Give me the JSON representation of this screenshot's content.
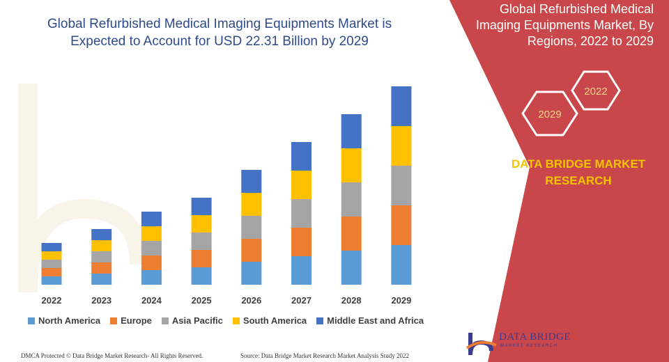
{
  "header": {
    "title_line1": "Global Refurbished Medical Imaging Equipments Market is",
    "title_line2": "Expected to Account for USD 22.31 Billion by 2029"
  },
  "side_panel": {
    "title_line1": "Global Refurbished Medical",
    "title_line2": "Imaging Equipments Market, By",
    "title_line3": "Regions, 2022 to 2029",
    "hex_top": "2022",
    "hex_bottom": "2029",
    "brand_line1": "DATA BRIDGE MARKET",
    "brand_line2": "RESEARCH"
  },
  "footer": {
    "left": "DMCA Protected © Data Bridge Market Research- All Rights Reserved.",
    "right": "Source: Data Bridge Market Research Market Analysis Study 2022"
  },
  "logo": {
    "name": "DATA BRIDGE",
    "sub": "MARKET RESEARCH"
  },
  "colors": {
    "panel": "#c9474a",
    "north_america": "#5b9bd5",
    "europe": "#ed7d31",
    "asia_pacific": "#a5a5a5",
    "south_america": "#ffc000",
    "mea": "#4472c4"
  },
  "chart_data": {
    "type": "bar",
    "stacked": true,
    "categories": [
      "2022",
      "2023",
      "2024",
      "2025",
      "2026",
      "2027",
      "2028",
      "2029"
    ],
    "series": [
      {
        "name": "North America",
        "color": "#5b9bd5",
        "values": [
          12,
          16,
          21,
          25,
          33,
          41,
          49,
          57
        ]
      },
      {
        "name": "Europe",
        "color": "#ed7d31",
        "values": [
          12,
          16,
          21,
          25,
          33,
          41,
          49,
          57
        ]
      },
      {
        "name": "Asia Pacific",
        "color": "#a5a5a5",
        "values": [
          12,
          16,
          21,
          25,
          33,
          41,
          49,
          57
        ]
      },
      {
        "name": "South America",
        "color": "#ffc000",
        "values": [
          12,
          16,
          21,
          25,
          33,
          41,
          49,
          57
        ]
      },
      {
        "name": "Middle East and Africa",
        "color": "#4472c4",
        "values": [
          12,
          16,
          21,
          25,
          33,
          41,
          49,
          57
        ]
      }
    ],
    "ylim": [
      0,
      290
    ],
    "grid": false,
    "legend_position": "bottom"
  }
}
